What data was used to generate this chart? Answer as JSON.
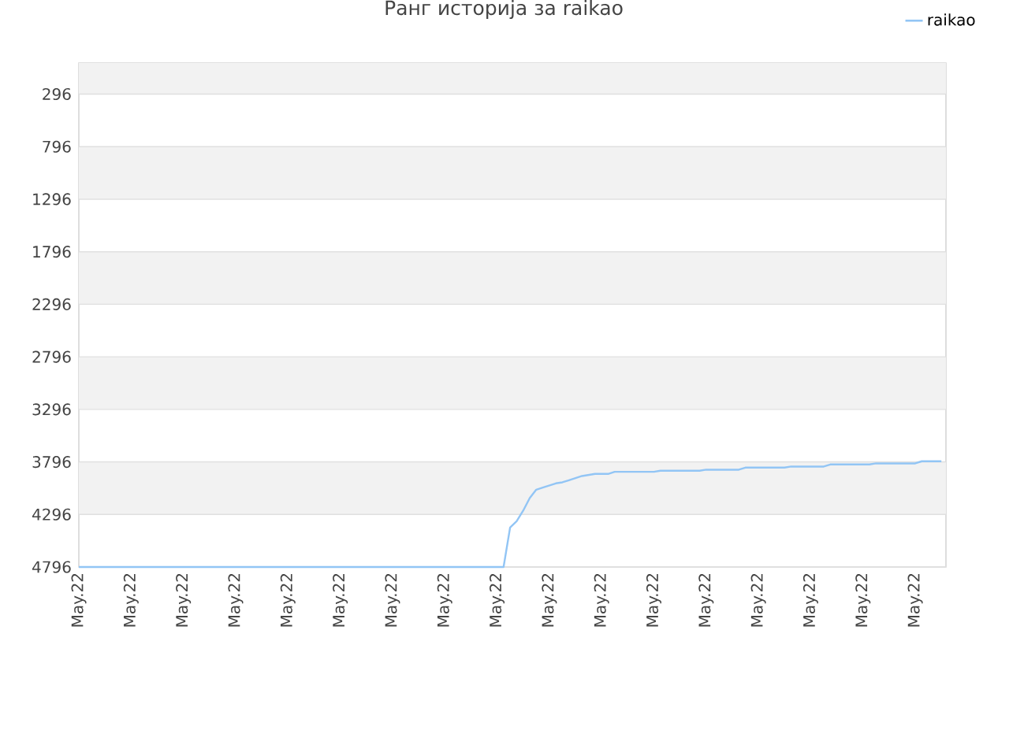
{
  "chart_data": {
    "type": "line",
    "title": "Ранг историја за raikao",
    "categories": [
      "May.22",
      null,
      null,
      null,
      null,
      null,
      null,
      null,
      "May.22",
      null,
      null,
      null,
      null,
      null,
      null,
      null,
      "May.22",
      null,
      null,
      null,
      null,
      null,
      null,
      null,
      "May.22",
      null,
      null,
      null,
      null,
      null,
      null,
      null,
      "May.22",
      null,
      null,
      null,
      null,
      null,
      null,
      null,
      "May.22",
      null,
      null,
      null,
      null,
      null,
      null,
      null,
      "May.22",
      null,
      null,
      null,
      null,
      null,
      null,
      null,
      "May.22",
      null,
      null,
      null,
      null,
      null,
      null,
      null,
      "May.22",
      null,
      null,
      null,
      null,
      null,
      null,
      null,
      "May.22",
      null,
      null,
      null,
      null,
      null,
      null,
      null,
      "May.22",
      null,
      null,
      null,
      null,
      null,
      null,
      null,
      "May.22",
      null,
      null,
      null,
      null,
      null,
      null,
      null,
      "May.22",
      null,
      null,
      null,
      null,
      null,
      null,
      null,
      "May.22",
      null,
      null,
      null,
      null,
      null,
      null,
      null,
      "May.22",
      null,
      null,
      null,
      null,
      null,
      null,
      null,
      "May.22",
      null,
      null,
      null,
      null,
      null,
      null,
      null,
      "May.22",
      null,
      null,
      null,
      null
    ],
    "ylim": [
      4796,
      0
    ],
    "yticks": [
      296,
      796,
      1296,
      1796,
      2296,
      2796,
      3296,
      3796,
      4296,
      4796
    ],
    "grid": "y",
    "legend": "top right",
    "marker": "none",
    "line_style": "solid",
    "series": [
      {
        "name": "raikao",
        "color": "#92c5f5",
        "values": [
          4796,
          4796,
          4796,
          4796,
          4796,
          4796,
          4796,
          4796,
          4796,
          4796,
          4796,
          4796,
          4796,
          4796,
          4796,
          4796,
          4796,
          4796,
          4796,
          4796,
          4796,
          4796,
          4796,
          4796,
          4796,
          4796,
          4796,
          4796,
          4796,
          4796,
          4796,
          4796,
          4796,
          4796,
          4796,
          4796,
          4796,
          4796,
          4796,
          4796,
          4796,
          4796,
          4796,
          4796,
          4796,
          4796,
          4796,
          4796,
          4796,
          4796,
          4796,
          4796,
          4796,
          4796,
          4796,
          4796,
          4796,
          4796,
          4796,
          4796,
          4796,
          4796,
          4796,
          4796,
          4796,
          4796,
          4420,
          4360,
          4260,
          4140,
          4060,
          4040,
          4020,
          4000,
          3990,
          3970,
          3950,
          3930,
          3920,
          3910,
          3910,
          3910,
          3890,
          3890,
          3890,
          3890,
          3890,
          3890,
          3890,
          3880,
          3880,
          3880,
          3880,
          3880,
          3880,
          3880,
          3870,
          3870,
          3870,
          3870,
          3870,
          3870,
          3850,
          3850,
          3850,
          3850,
          3850,
          3850,
          3850,
          3840,
          3840,
          3840,
          3840,
          3840,
          3840,
          3820,
          3820,
          3820,
          3820,
          3820,
          3820,
          3820,
          3810,
          3810,
          3810,
          3810,
          3810,
          3810,
          3810,
          3790,
          3790,
          3790,
          3790
        ]
      }
    ]
  }
}
